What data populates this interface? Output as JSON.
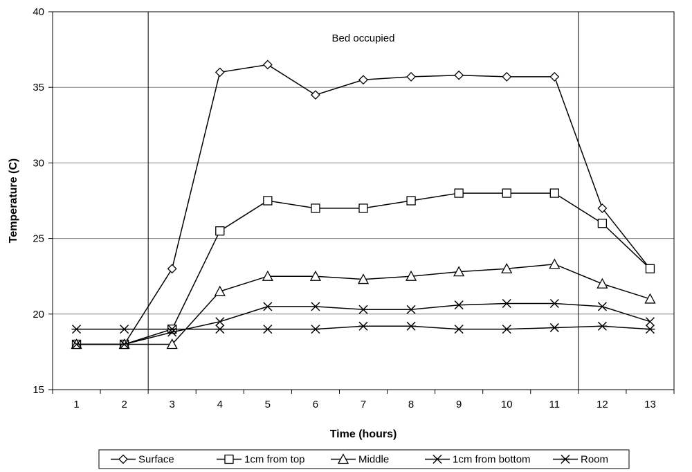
{
  "chart_data": {
    "type": "line",
    "xlabel": "Time (hours)",
    "ylabel": "Temperature (C)",
    "x": [
      1,
      2,
      3,
      4,
      5,
      6,
      7,
      8,
      9,
      10,
      11,
      12,
      13
    ],
    "ylim": [
      15,
      40
    ],
    "yticks": [
      15,
      20,
      25,
      30,
      35,
      40
    ],
    "grid": "horizontal",
    "legend_position": "bottom",
    "annotation": "Bed occupied",
    "occupied_between": [
      2.5,
      11.5
    ],
    "series": [
      {
        "name": "Surface",
        "marker": "diamond",
        "values": [
          18,
          18,
          23,
          36,
          36.5,
          34.5,
          35.5,
          35.7,
          35.8,
          35.7,
          35.7,
          27,
          23
        ]
      },
      {
        "name": "1cm from top",
        "marker": "square",
        "values": [
          18,
          18,
          19,
          25.5,
          27.5,
          27,
          27,
          27.5,
          28,
          28,
          28,
          26,
          23
        ]
      },
      {
        "name": "Middle",
        "marker": "triangle",
        "values": [
          18,
          18,
          18,
          21.5,
          22.5,
          22.5,
          22.3,
          22.5,
          22.8,
          23,
          23.3,
          22,
          21
        ]
      },
      {
        "name": "1cm from bottom",
        "marker": "x",
        "values": [
          18,
          18,
          18.8,
          19.5,
          20.5,
          20.5,
          20.3,
          20.3,
          20.6,
          20.7,
          20.7,
          20.5,
          19.5
        ]
      },
      {
        "name": "Room",
        "marker": "star",
        "values": [
          19,
          19,
          19,
          19,
          19,
          19,
          19.2,
          19.2,
          19,
          19,
          19.1,
          19.2,
          19
        ]
      }
    ],
    "colors": {
      "line": "#000000",
      "grid": "#808080",
      "background": "#ffffff"
    }
  }
}
